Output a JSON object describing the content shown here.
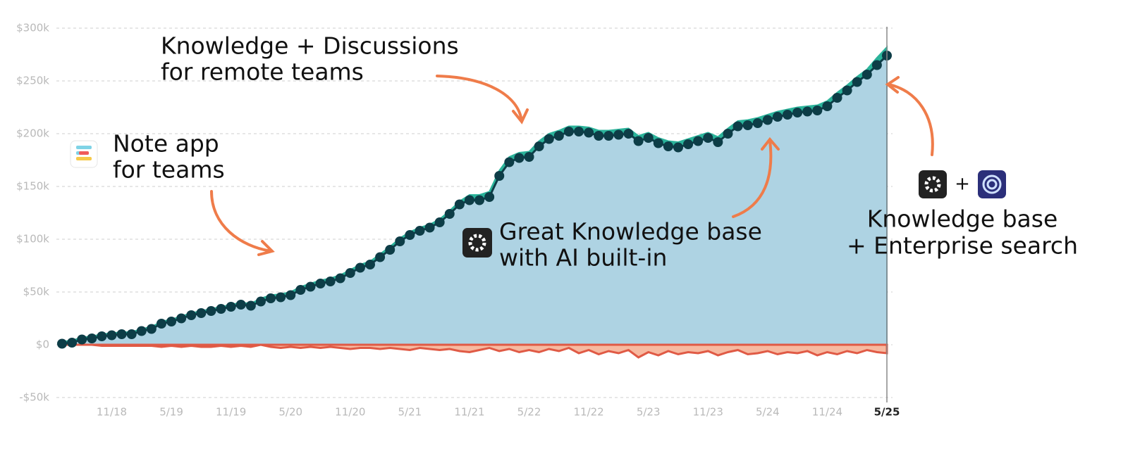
{
  "chart_data": {
    "type": "area",
    "categories": [
      null,
      null,
      null,
      null,
      null,
      "11/18",
      null,
      null,
      null,
      null,
      null,
      "5/19",
      null,
      null,
      null,
      null,
      null,
      "11/19",
      null,
      null,
      null,
      null,
      null,
      "5/20",
      null,
      null,
      null,
      null,
      null,
      "11/20",
      null,
      null,
      null,
      null,
      null,
      "5/21",
      null,
      null,
      null,
      null,
      null,
      "11/21",
      null,
      null,
      null,
      null,
      null,
      "5/22",
      null,
      null,
      null,
      null,
      null,
      "11/22",
      null,
      null,
      null,
      null,
      null,
      "5/23",
      null,
      null,
      null,
      null,
      null,
      "11/23",
      null,
      null,
      null,
      null,
      null,
      "5/24",
      null,
      null,
      null,
      null,
      null,
      "11/24",
      null,
      null,
      null,
      null,
      null,
      "5/25"
    ],
    "series": [
      {
        "color": "#0d3d47",
        "fill": "#aed3e3",
        "values": [
          1,
          2,
          5,
          6,
          8,
          9,
          10,
          10,
          13,
          15,
          20,
          22,
          25,
          28,
          30,
          32,
          34,
          36,
          38,
          37,
          41,
          44,
          45,
          47,
          52,
          55,
          58,
          60,
          63,
          68,
          73,
          76,
          83,
          90,
          98,
          104,
          108,
          111,
          116,
          124,
          133,
          137,
          137,
          140,
          160,
          173,
          177,
          178,
          188,
          195,
          198,
          202,
          202,
          201,
          198,
          198,
          199,
          200,
          193,
          196,
          191,
          188,
          187,
          190,
          193,
          196,
          192,
          200,
          207,
          208,
          210,
          213,
          216,
          218,
          220,
          221,
          222,
          226,
          234,
          241,
          249,
          256,
          265,
          274
        ]
      },
      {
        "color": "#2bb39a",
        "values": [
          3,
          4,
          7,
          8,
          10,
          11,
          12,
          12,
          15,
          17,
          22,
          24,
          27,
          30,
          32,
          34,
          36,
          38,
          40,
          39,
          44,
          47,
          48,
          50,
          55,
          58,
          61,
          63,
          66,
          71,
          76,
          79,
          86,
          93,
          101,
          107,
          111,
          114,
          119,
          127,
          136,
          142,
          142,
          145,
          165,
          178,
          182,
          183,
          193,
          200,
          203,
          207,
          207,
          206,
          203,
          203,
          204,
          205,
          198,
          201,
          196,
          193,
          192,
          195,
          198,
          201,
          197,
          205,
          212,
          213,
          215,
          218,
          221,
          223,
          225,
          226,
          227,
          231,
          239,
          246,
          254,
          261,
          272,
          282
        ]
      },
      {
        "color": "#e05a45",
        "fill": "#f7b9a0",
        "values": [
          0,
          0,
          0,
          0,
          -1,
          -1,
          -1,
          -1,
          -1,
          -1,
          -2,
          -1,
          -2,
          -1,
          -2,
          -2,
          -1,
          -2,
          -1,
          -2,
          0,
          -2,
          -3,
          -2,
          -3,
          -2,
          -3,
          -2,
          -3,
          -4,
          -3,
          -3,
          -4,
          -3,
          -4,
          -5,
          -3,
          -4,
          -5,
          -4,
          -6,
          -7,
          -5,
          -3,
          -6,
          -4,
          -7,
          -5,
          -7,
          -4,
          -6,
          -3,
          -8,
          -5,
          -9,
          -6,
          -8,
          -5,
          -12,
          -7,
          -10,
          -6,
          -9,
          -7,
          -8,
          -6,
          -10,
          -7,
          -5,
          -9,
          -8,
          -6,
          -9,
          -7,
          -8,
          -6,
          -10,
          -7,
          -9,
          -6,
          -8,
          -5,
          -7,
          -8
        ]
      }
    ],
    "ylim": [
      -55,
      310
    ],
    "yticks": [
      {
        "value": -50,
        "label": "-$50k"
      },
      {
        "value": 0,
        "label": "$0"
      },
      {
        "value": 50,
        "label": "$50k"
      },
      {
        "value": 100,
        "label": "$100k"
      },
      {
        "value": 150,
        "label": "$150k"
      },
      {
        "value": 200,
        "label": "$200k"
      },
      {
        "value": 250,
        "label": "$250k"
      },
      {
        "value": 300,
        "label": "$300k"
      }
    ],
    "grid": true,
    "annotations": [
      {
        "lines": [
          "Knowledge + Discussions",
          "for remote teams"
        ]
      },
      {
        "lines": [
          "Note app",
          "for teams"
        ]
      },
      {
        "lines": [
          "Great Knowledge base",
          "with AI built-in"
        ]
      },
      {
        "lines": [
          "+"
        ]
      },
      {
        "lines": [
          "Knowledge base",
          "+ Enterprise search"
        ]
      }
    ]
  }
}
